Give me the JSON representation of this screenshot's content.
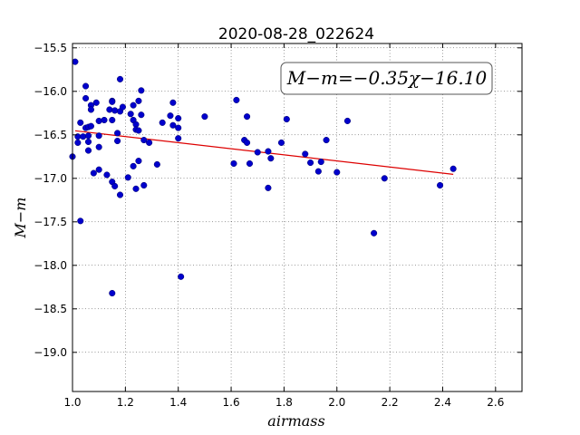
{
  "chart_data": {
    "type": "scatter",
    "title": "2020-08-28_022624",
    "xlabel": "airmass",
    "ylabel": "M−m",
    "annotation": "M−m=−0.35χ−16.10",
    "xlim": [
      1.0,
      2.7
    ],
    "ylim": [
      -15.45,
      -19.45
    ],
    "y_inverted": true,
    "grid": true,
    "x_ticks": [
      1.0,
      1.2,
      1.4,
      1.6,
      1.8,
      2.0,
      2.2,
      2.4,
      2.6
    ],
    "x_tick_labels": [
      "1.0",
      "1.2",
      "1.4",
      "1.6",
      "1.8",
      "2.0",
      "2.2",
      "2.4",
      "2.6"
    ],
    "y_ticks": [
      -15.5,
      -16.0,
      -16.5,
      -17.0,
      -17.5,
      -18.0,
      -18.5,
      -19.0
    ],
    "y_tick_labels": [
      "−15.5",
      "−16.0",
      "−16.5",
      "−17.0",
      "−17.5",
      "−18.0",
      "−18.5",
      "−19.0"
    ],
    "point_color": "#0000cc",
    "fit_color": "#dd0000",
    "fit": {
      "slope": -0.35,
      "intercept": -16.1,
      "x_range": [
        1.01,
        2.44
      ]
    },
    "series": [
      {
        "points": [
          [
            1.0,
            -16.75
          ],
          [
            1.01,
            -15.66
          ],
          [
            1.02,
            -16.52
          ],
          [
            1.02,
            -16.59
          ],
          [
            1.03,
            -16.36
          ],
          [
            1.03,
            -17.49
          ],
          [
            1.04,
            -16.52
          ],
          [
            1.05,
            -16.08
          ],
          [
            1.05,
            -15.94
          ],
          [
            1.05,
            -16.42
          ],
          [
            1.06,
            -16.58
          ],
          [
            1.06,
            -16.68
          ],
          [
            1.06,
            -16.41
          ],
          [
            1.06,
            -16.51
          ],
          [
            1.07,
            -16.16
          ],
          [
            1.07,
            -16.21
          ],
          [
            1.07,
            -16.4
          ],
          [
            1.08,
            -16.94
          ],
          [
            1.09,
            -16.13
          ],
          [
            1.1,
            -16.64
          ],
          [
            1.1,
            -16.9
          ],
          [
            1.1,
            -16.51
          ],
          [
            1.1,
            -16.34
          ],
          [
            1.12,
            -16.33
          ],
          [
            1.13,
            -16.96
          ],
          [
            1.14,
            -16.21
          ],
          [
            1.15,
            -16.11
          ],
          [
            1.15,
            -16.12
          ],
          [
            1.15,
            -16.33
          ],
          [
            1.15,
            -17.04
          ],
          [
            1.15,
            -18.32
          ],
          [
            1.16,
            -16.22
          ],
          [
            1.16,
            -17.09
          ],
          [
            1.17,
            -16.57
          ],
          [
            1.17,
            -16.48
          ],
          [
            1.18,
            -16.23
          ],
          [
            1.18,
            -17.19
          ],
          [
            1.18,
            -15.86
          ],
          [
            1.19,
            -16.18
          ],
          [
            1.21,
            -16.99
          ],
          [
            1.22,
            -16.26
          ],
          [
            1.23,
            -16.86
          ],
          [
            1.23,
            -16.33
          ],
          [
            1.23,
            -16.16
          ],
          [
            1.24,
            -16.38
          ],
          [
            1.24,
            -16.44
          ],
          [
            1.24,
            -17.12
          ],
          [
            1.25,
            -16.45
          ],
          [
            1.25,
            -16.11
          ],
          [
            1.25,
            -16.8
          ],
          [
            1.26,
            -15.99
          ],
          [
            1.26,
            -16.27
          ],
          [
            1.27,
            -17.08
          ],
          [
            1.27,
            -16.56
          ],
          [
            1.29,
            -16.59
          ],
          [
            1.32,
            -16.84
          ],
          [
            1.34,
            -16.36
          ],
          [
            1.37,
            -16.28
          ],
          [
            1.38,
            -16.13
          ],
          [
            1.38,
            -16.39
          ],
          [
            1.4,
            -16.42
          ],
          [
            1.4,
            -16.31
          ],
          [
            1.4,
            -16.54
          ],
          [
            1.41,
            -18.13
          ],
          [
            1.5,
            -16.29
          ],
          [
            1.61,
            -16.83
          ],
          [
            1.62,
            -16.1
          ],
          [
            1.65,
            -16.56
          ],
          [
            1.66,
            -16.59
          ],
          [
            1.66,
            -16.29
          ],
          [
            1.67,
            -16.83
          ],
          [
            1.7,
            -16.7
          ],
          [
            1.74,
            -16.69
          ],
          [
            1.74,
            -17.11
          ],
          [
            1.75,
            -16.77
          ],
          [
            1.79,
            -16.59
          ],
          [
            1.81,
            -16.32
          ],
          [
            1.88,
            -16.72
          ],
          [
            1.9,
            -16.82
          ],
          [
            1.93,
            -16.92
          ],
          [
            1.94,
            -16.81
          ],
          [
            1.96,
            -16.56
          ],
          [
            2.0,
            -16.93
          ],
          [
            2.04,
            -16.34
          ],
          [
            2.14,
            -17.63
          ],
          [
            2.18,
            -17.0
          ],
          [
            2.39,
            -17.08
          ],
          [
            2.44,
            -16.89
          ]
        ]
      }
    ]
  }
}
